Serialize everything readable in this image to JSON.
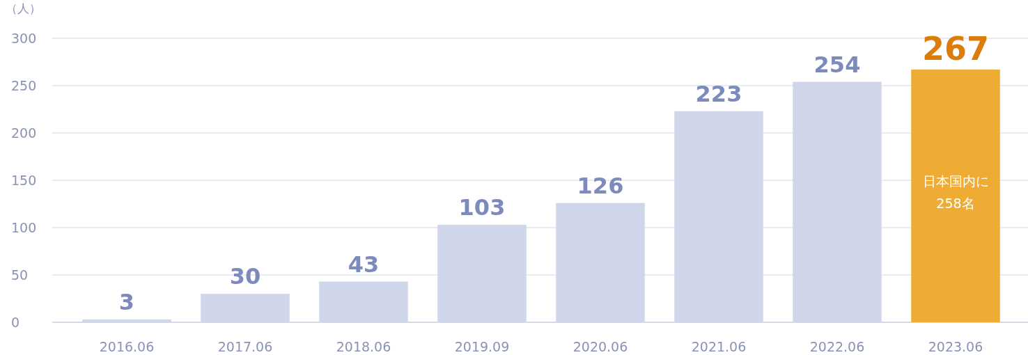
{
  "chart_data": {
    "type": "bar",
    "ylabel": "（人）",
    "categories": [
      "2016.06",
      "2017.06",
      "2018.06",
      "2019.09",
      "2020.06",
      "2021.06",
      "2022.06",
      "2023.06"
    ],
    "values": [
      3,
      30,
      43,
      103,
      126,
      223,
      254,
      267
    ],
    "colors": [
      "#cfd6ea",
      "#cfd6ea",
      "#cfd6ea",
      "#cfd6ea",
      "#cfd6ea",
      "#cfd6ea",
      "#cfd6ea",
      "#eeac35"
    ],
    "ylim": [
      0,
      300
    ],
    "yticks": [
      0,
      50,
      100,
      150,
      200,
      250,
      300
    ],
    "grid": "y",
    "data_labels": true,
    "annotations": [
      "日本国内に\n258名"
    ]
  }
}
